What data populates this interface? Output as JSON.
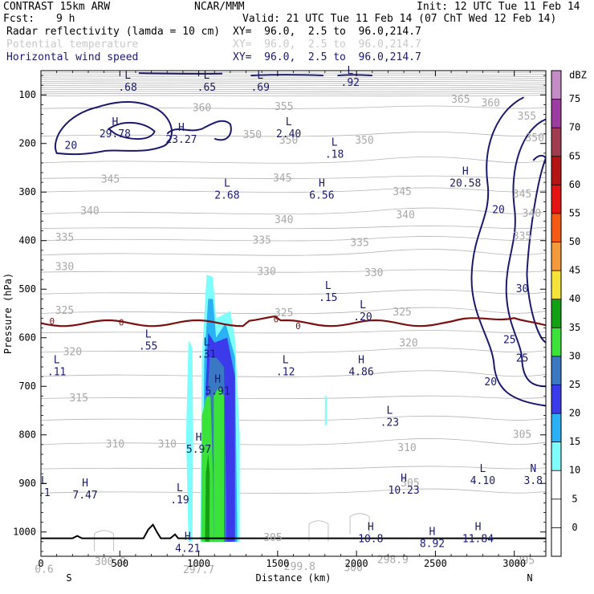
{
  "header": {
    "model": "CONTRAST 15km ARW",
    "center": "NCAR/MMM",
    "init": "Init: 12 UTC Tue 11 Feb 14",
    "fcst_label": "Fcst:",
    "fcst_value": "9 h",
    "valid": "Valid: 21 UTC Tue 11 Feb 14 (07 ChT Wed 12 Feb 14)",
    "fields": [
      {
        "name": "Radar reflectivity (lamda = 10 cm)",
        "xy": "XY=  96.0,  2.5 to  96.0,214.7",
        "color": "#000000"
      },
      {
        "name": "Potential temperature",
        "xy": "XY=  96.0,  2.5 to  96.0,214.7",
        "color": "#c8c8c8"
      },
      {
        "name": "Horizontal wind speed",
        "xy": "XY=  96.0,  2.5 to  96.0,214.7",
        "color": "#1a1a6e"
      }
    ]
  },
  "chart_data": {
    "type": "heatmap",
    "xlabel": "Distance (km)",
    "ylabel": "Pressure (hPa)",
    "xlim": [
      0,
      3200
    ],
    "ylim": [
      1050,
      50
    ],
    "x_ticks": [
      0,
      500,
      1000,
      1500,
      2000,
      2500,
      3000
    ],
    "y_ticks": [
      100,
      200,
      300,
      400,
      500,
      600,
      700,
      800,
      900,
      1000
    ],
    "left_end": "S",
    "right_end": "N",
    "colorbar": {
      "unit": "dBZ",
      "levels": [
        0,
        5,
        10,
        15,
        20,
        25,
        30,
        35,
        40,
        45,
        50,
        55,
        60,
        65,
        70,
        75
      ],
      "colors": [
        "#ffffff",
        "#ffffff",
        "#7ffcfc",
        "#2ab0f4",
        "#3b3bec",
        "#3a78c4",
        "#3ae23a",
        "#14a014",
        "#f4e43a",
        "#f49a3a",
        "#f45a14",
        "#e41414",
        "#b41414",
        "#a03c50",
        "#9c3ca0",
        "#c48cc4"
      ]
    },
    "theta_labels": [
      {
        "x": 1020,
        "p": 128,
        "t": "360"
      },
      {
        "x": 1540,
        "p": 125,
        "t": "355"
      },
      {
        "x": 2660,
        "p": 110,
        "t": "365"
      },
      {
        "x": 2850,
        "p": 118,
        "t": "360"
      },
      {
        "x": 3080,
        "p": 145,
        "t": "355"
      },
      {
        "x": 3130,
        "p": 190,
        "t": "350"
      },
      {
        "x": 1340,
        "p": 183,
        "t": "350"
      },
      {
        "x": 1570,
        "p": 195,
        "t": "350"
      },
      {
        "x": 2050,
        "p": 195,
        "t": "350"
      },
      {
        "x": 440,
        "p": 275,
        "t": "345"
      },
      {
        "x": 1530,
        "p": 272,
        "t": "345"
      },
      {
        "x": 2290,
        "p": 300,
        "t": "345"
      },
      {
        "x": 3050,
        "p": 305,
        "t": "345"
      },
      {
        "x": 310,
        "p": 340,
        "t": "340"
      },
      {
        "x": 1540,
        "p": 358,
        "t": "340"
      },
      {
        "x": 2310,
        "p": 348,
        "t": "340"
      },
      {
        "x": 3110,
        "p": 345,
        "t": "340"
      },
      {
        "x": 150,
        "p": 395,
        "t": "335"
      },
      {
        "x": 1400,
        "p": 400,
        "t": "335"
      },
      {
        "x": 2020,
        "p": 405,
        "t": "335"
      },
      {
        "x": 3050,
        "p": 392,
        "t": "335"
      },
      {
        "x": 150,
        "p": 455,
        "t": "330"
      },
      {
        "x": 1430,
        "p": 465,
        "t": "330"
      },
      {
        "x": 2110,
        "p": 467,
        "t": "330"
      },
      {
        "x": 150,
        "p": 545,
        "t": "325"
      },
      {
        "x": 1540,
        "p": 550,
        "t": "325"
      },
      {
        "x": 2290,
        "p": 548,
        "t": "325"
      },
      {
        "x": 200,
        "p": 630,
        "t": "320"
      },
      {
        "x": 2330,
        "p": 612,
        "t": "320"
      },
      {
        "x": 240,
        "p": 725,
        "t": "315"
      },
      {
        "x": 470,
        "p": 820,
        "t": "310"
      },
      {
        "x": 800,
        "p": 820,
        "t": "310"
      },
      {
        "x": 2320,
        "p": 828,
        "t": "310"
      },
      {
        "x": 2340,
        "p": 900,
        "t": "305"
      },
      {
        "x": 3050,
        "p": 800,
        "t": "305"
      },
      {
        "x": 1470,
        "p": 1013,
        "t": "305"
      },
      {
        "x": 2230,
        "p": 1058,
        "t": "298.9"
      },
      {
        "x": 440,
        "p": 1062,
        "t": "300.9"
      },
      {
        "x": 1640,
        "p": 1072,
        "t": "299.8"
      },
      {
        "x": 1980,
        "p": 1075,
        "t": "300"
      },
      {
        "x": 3070,
        "p": 1060,
        "t": "295"
      },
      {
        "x": 1000,
        "p": 1079,
        "t": "297.7"
      },
      {
        "x": 20,
        "p": 1078,
        "t": "0.6"
      }
    ],
    "wind_extrema": [
      {
        "x": 550,
        "p": 72,
        "type": "L",
        "value": ".68"
      },
      {
        "x": 1050,
        "p": 72,
        "type": "L",
        "value": ".65"
      },
      {
        "x": 1390,
        "p": 72,
        "type": "L",
        "value": ".69"
      },
      {
        "x": 1960,
        "p": 62,
        "type": "L",
        "value": ".92"
      },
      {
        "x": 470,
        "p": 168,
        "type": "H",
        "value": "29.78"
      },
      {
        "x": 890,
        "p": 180,
        "type": "H",
        "value": "23.27"
      },
      {
        "x": 1570,
        "p": 168,
        "type": "L",
        "value": "2.40"
      },
      {
        "x": 1860,
        "p": 210,
        "type": "L",
        "value": ".18"
      },
      {
        "x": 2690,
        "p": 270,
        "type": "H",
        "value": "20.58"
      },
      {
        "x": 1180,
        "p": 295,
        "type": "L",
        "value": "2.68"
      },
      {
        "x": 1780,
        "p": 295,
        "type": "H",
        "value": "6.56"
      },
      {
        "x": 1820,
        "p": 505,
        "type": "L",
        "value": ".15"
      },
      {
        "x": 2040,
        "p": 545,
        "type": "L",
        "value": ".20"
      },
      {
        "x": 680,
        "p": 605,
        "type": "L",
        "value": ".55"
      },
      {
        "x": 1050,
        "p": 622,
        "type": "L",
        "value": ".31"
      },
      {
        "x": 100,
        "p": 658,
        "type": "L",
        "value": ".11"
      },
      {
        "x": 1550,
        "p": 658,
        "type": "L",
        "value": ".12"
      },
      {
        "x": 2030,
        "p": 658,
        "type": "H",
        "value": "4.86"
      },
      {
        "x": 1120,
        "p": 698,
        "type": "H",
        "value": "5.91"
      },
      {
        "x": 2210,
        "p": 762,
        "type": "L",
        "value": ".23"
      },
      {
        "x": 1000,
        "p": 818,
        "type": "H",
        "value": "5.97"
      },
      {
        "x": 2800,
        "p": 882,
        "type": "L",
        "value": "4.10"
      },
      {
        "x": 3120,
        "p": 882,
        "type": "N",
        "value": "3.8"
      },
      {
        "x": 20,
        "p": 907,
        "type": "L",
        "value": ".1"
      },
      {
        "x": 280,
        "p": 912,
        "type": "H",
        "value": "7.47"
      },
      {
        "x": 2300,
        "p": 902,
        "type": "H",
        "value": "10.23"
      },
      {
        "x": 880,
        "p": 922,
        "type": "L",
        "value": ".19"
      },
      {
        "x": 2090,
        "p": 1002,
        "type": "H",
        "value": "10.8"
      },
      {
        "x": 2480,
        "p": 1012,
        "type": "H",
        "value": "8.92"
      },
      {
        "x": 2770,
        "p": 1002,
        "type": "H",
        "value": "11.84"
      },
      {
        "x": 930,
        "p": 1022,
        "type": "H",
        "value": "4.21"
      }
    ],
    "wind_contour_labels": [
      {
        "x": 190,
        "p": 205,
        "t": "20"
      },
      {
        "x": 2900,
        "p": 338,
        "t": "20"
      },
      {
        "x": 3050,
        "p": 500,
        "t": "30"
      },
      {
        "x": 2970,
        "p": 605,
        "t": "25"
      },
      {
        "x": 3050,
        "p": 643,
        "t": "25"
      },
      {
        "x": 2850,
        "p": 692,
        "t": "20"
      }
    ],
    "freezing_level_labels": [
      {
        "x": 70,
        "p": 567,
        "t": "0"
      },
      {
        "x": 510,
        "p": 570,
        "t": "0"
      },
      {
        "x": 1490,
        "p": 563,
        "t": "0"
      },
      {
        "x": 1630,
        "p": 577,
        "t": "0"
      }
    ]
  }
}
